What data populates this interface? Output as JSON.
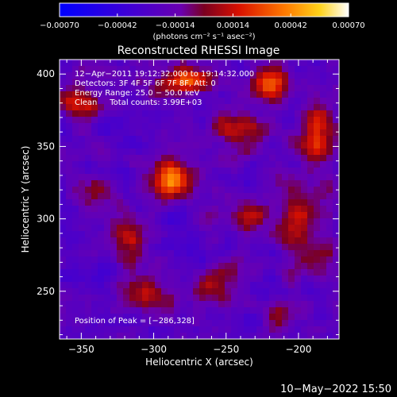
{
  "chart_data": {
    "type": "heatmap",
    "title": "Reconstructed RHESSI Image",
    "xlabel": "Heliocentric X (arcsec)",
    "ylabel": "Heliocentric Y (arcsec)",
    "xlim": [
      -365,
      -172
    ],
    "ylim": [
      217,
      410
    ],
    "x_ticks": [
      -350,
      -300,
      -250,
      -200
    ],
    "y_ticks": [
      250,
      300,
      350,
      400
    ],
    "x_tick_labels": [
      "−350",
      "−300",
      "−250",
      "−200"
    ],
    "y_tick_labels": [
      "250",
      "300",
      "350",
      "400"
    ],
    "colorbar": {
      "range": [
        -0.0007,
        0.0007
      ],
      "ticks": [
        -0.0007,
        -0.00042,
        -0.00014,
        0.00014,
        0.00042,
        0.0007
      ],
      "tick_labels": [
        "−0.00070",
        "−0.00042",
        "−0.00014",
        "0.00014",
        "0.00042",
        "0.00070"
      ],
      "unit_label": "(photons cm⁻² s⁻¹ asec⁻²)"
    },
    "annotations": [
      "12−Apr−2011 19:12:32.000 to 19:14:32.000",
      "Detectors: 3F 4F 5F 6F 7F 8F, Att: 0",
      "Energy Range: 25.0 − 50.0 keV",
      "Clean     Total counts: 3.99E+03"
    ],
    "peak_label": "Position of Peak = [−286,328]",
    "peak": [
      -286,
      328
    ],
    "sources": [
      {
        "x": -288,
        "y": 328,
        "sx": 9,
        "sy": 9,
        "amp": 0.00066
      },
      {
        "x": -278,
        "y": 395,
        "sx": 14,
        "sy": 7,
        "amp": 0.00048
      },
      {
        "x": -218,
        "y": 394,
        "sx": 10,
        "sy": 9,
        "amp": 0.00046
      },
      {
        "x": -352,
        "y": 382,
        "sx": 10,
        "sy": 8,
        "amp": 0.00038
      },
      {
        "x": -245,
        "y": 363,
        "sx": 12,
        "sy": 8,
        "amp": 0.00034
      },
      {
        "x": -188,
        "y": 358,
        "sx": 8,
        "sy": 16,
        "amp": 0.0004
      },
      {
        "x": -200,
        "y": 297,
        "sx": 10,
        "sy": 18,
        "amp": 0.00038
      },
      {
        "x": -235,
        "y": 303,
        "sx": 9,
        "sy": 7,
        "amp": 0.00036
      },
      {
        "x": -258,
        "y": 252,
        "sx": 12,
        "sy": 9,
        "amp": 0.0003
      },
      {
        "x": -318,
        "y": 285,
        "sx": 9,
        "sy": 13,
        "amp": 0.0003
      },
      {
        "x": -305,
        "y": 250,
        "sx": 13,
        "sy": 8,
        "amp": 0.0003
      },
      {
        "x": -342,
        "y": 318,
        "sx": 8,
        "sy": 8,
        "amp": 0.00024
      },
      {
        "x": -212,
        "y": 235,
        "sx": 9,
        "sy": 8,
        "amp": 0.00026
      },
      {
        "x": -180,
        "y": 272,
        "sx": 7,
        "sy": 9,
        "amp": 0.00026
      }
    ],
    "background_amplitude": -0.00022,
    "footer_date": "10−May−2022 15:50"
  }
}
